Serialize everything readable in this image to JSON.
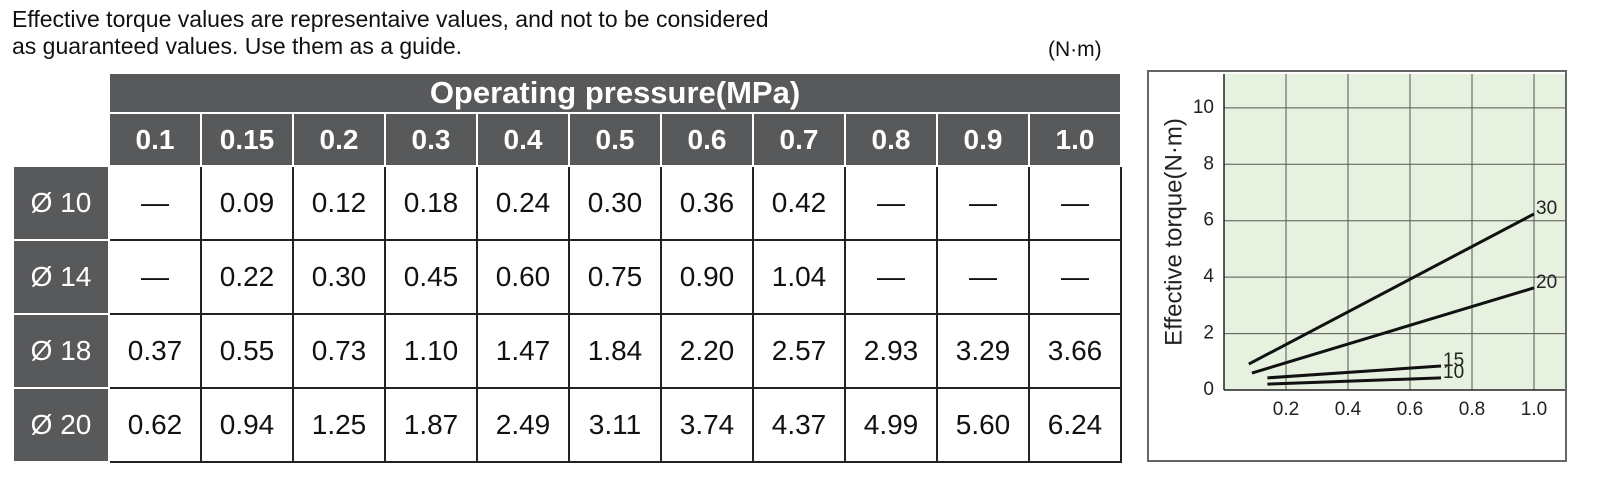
{
  "note": [
    "Effective torque values are representaive values, and not to be considered",
    "as guaranteed values. Use them as a guide."
  ],
  "unit": "(N·m)",
  "table": {
    "header_title": "Operating pressure(MPa)",
    "columns": [
      "0.1",
      "0.15",
      "0.2",
      "0.3",
      "0.4",
      "0.5",
      "0.6",
      "0.7",
      "0.8",
      "0.9",
      "1.0"
    ],
    "rows": [
      {
        "label": "Ø 10",
        "cells": [
          "—",
          "0.09",
          "0.12",
          "0.18",
          "0.24",
          "0.30",
          "0.36",
          "0.42",
          "—",
          "—",
          "—"
        ]
      },
      {
        "label": "Ø 14",
        "cells": [
          "—",
          "0.22",
          "0.30",
          "0.45",
          "0.60",
          "0.75",
          "0.90",
          "1.04",
          "—",
          "—",
          "—"
        ]
      },
      {
        "label": "Ø 18",
        "cells": [
          "0.37",
          "0.55",
          "0.73",
          "1.10",
          "1.47",
          "1.84",
          "2.20",
          "2.57",
          "2.93",
          "3.29",
          "3.66"
        ]
      },
      {
        "label": "Ø 20",
        "cells": [
          "0.62",
          "0.94",
          "1.25",
          "1.87",
          "2.49",
          "3.11",
          "3.74",
          "4.37",
          "4.99",
          "5.60",
          "6.24"
        ]
      }
    ]
  },
  "chart_data": {
    "type": "line",
    "y_label": "Effective torque(N·m)",
    "xlim": [
      0,
      1.1
    ],
    "ylim": [
      0,
      11.2
    ],
    "xticks": [
      0.2,
      0.4,
      0.6,
      0.8,
      {
        "value": 1,
        "label": "1.0"
      }
    ],
    "yticks": [
      0,
      2,
      4,
      6,
      8,
      10
    ],
    "grid": true,
    "series": [
      {
        "name": "30",
        "color": "#111111",
        "x": [
          0.08,
          1.0
        ],
        "values": [
          0.92,
          6.24
        ]
      },
      {
        "name": "20",
        "color": "#111111",
        "x": [
          0.09,
          1.0
        ],
        "values": [
          0.6,
          3.62
        ]
      },
      {
        "name": "15",
        "color": "#111111",
        "x": [
          0.14,
          0.7
        ],
        "values": [
          0.43,
          0.85
        ]
      },
      {
        "name": "10",
        "color": "#111111",
        "x": [
          0.14,
          0.7
        ],
        "values": [
          0.21,
          0.43
        ]
      }
    ]
  }
}
